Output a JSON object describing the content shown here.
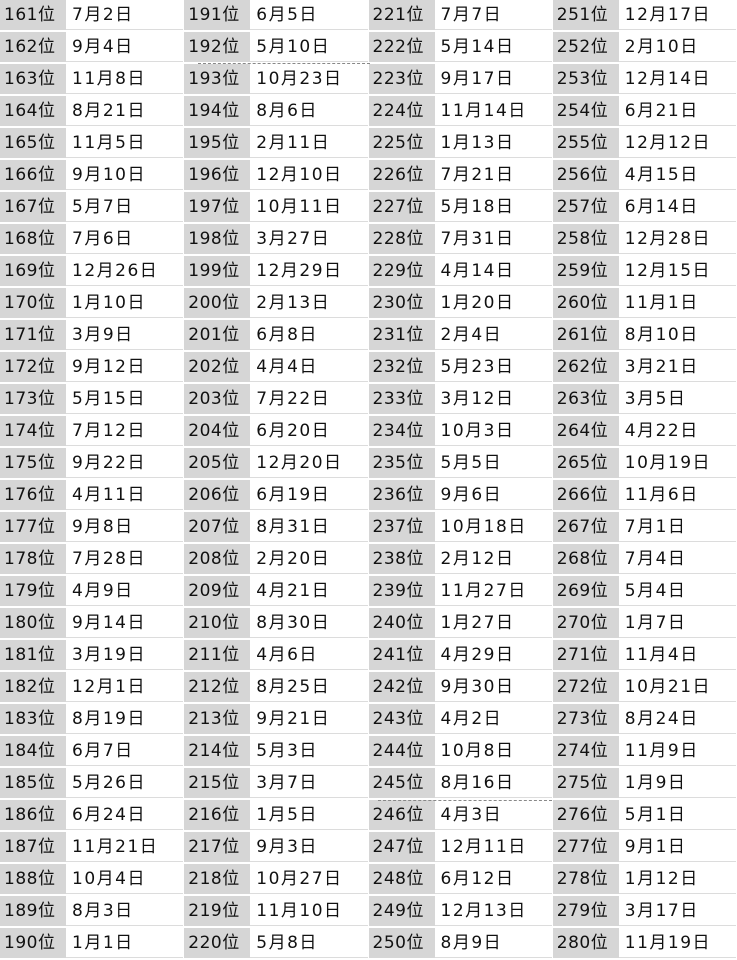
{
  "columns": [
    {
      "rows": [
        {
          "rank": "161位",
          "date": "7月2日"
        },
        {
          "rank": "162位",
          "date": "9月4日"
        },
        {
          "rank": "163位",
          "date": "11月8日"
        },
        {
          "rank": "164位",
          "date": "8月21日"
        },
        {
          "rank": "165位",
          "date": "11月5日"
        },
        {
          "rank": "166位",
          "date": "9月10日"
        },
        {
          "rank": "167位",
          "date": "5月7日"
        },
        {
          "rank": "168位",
          "date": "7月6日"
        },
        {
          "rank": "169位",
          "date": "12月26日"
        },
        {
          "rank": "170位",
          "date": "1月10日"
        },
        {
          "rank": "171位",
          "date": "3月9日"
        },
        {
          "rank": "172位",
          "date": "9月12日"
        },
        {
          "rank": "173位",
          "date": "5月15日"
        },
        {
          "rank": "174位",
          "date": "7月12日"
        },
        {
          "rank": "175位",
          "date": "9月22日"
        },
        {
          "rank": "176位",
          "date": "4月11日"
        },
        {
          "rank": "177位",
          "date": "9月8日"
        },
        {
          "rank": "178位",
          "date": "7月28日"
        },
        {
          "rank": "179位",
          "date": "4月9日"
        },
        {
          "rank": "180位",
          "date": "9月14日"
        },
        {
          "rank": "181位",
          "date": "3月19日"
        },
        {
          "rank": "182位",
          "date": "12月1日"
        },
        {
          "rank": "183位",
          "date": "8月19日"
        },
        {
          "rank": "184位",
          "date": "6月7日"
        },
        {
          "rank": "185位",
          "date": "5月26日"
        },
        {
          "rank": "186位",
          "date": "6月24日"
        },
        {
          "rank": "187位",
          "date": "11月21日"
        },
        {
          "rank": "188位",
          "date": "10月4日"
        },
        {
          "rank": "189位",
          "date": "8月3日"
        },
        {
          "rank": "190位",
          "date": "1月1日"
        }
      ]
    },
    {
      "rows": [
        {
          "rank": "191位",
          "date": "6月5日"
        },
        {
          "rank": "192位",
          "date": "5月10日"
        },
        {
          "rank": "193位",
          "date": "10月23日"
        },
        {
          "rank": "194位",
          "date": "8月6日"
        },
        {
          "rank": "195位",
          "date": "2月11日"
        },
        {
          "rank": "196位",
          "date": "12月10日"
        },
        {
          "rank": "197位",
          "date": "10月11日"
        },
        {
          "rank": "198位",
          "date": "3月27日"
        },
        {
          "rank": "199位",
          "date": "12月29日"
        },
        {
          "rank": "200位",
          "date": "2月13日"
        },
        {
          "rank": "201位",
          "date": "6月8日"
        },
        {
          "rank": "202位",
          "date": "4月4日"
        },
        {
          "rank": "203位",
          "date": "7月22日"
        },
        {
          "rank": "204位",
          "date": "6月20日"
        },
        {
          "rank": "205位",
          "date": "12月20日"
        },
        {
          "rank": "206位",
          "date": "6月19日"
        },
        {
          "rank": "207位",
          "date": "8月31日"
        },
        {
          "rank": "208位",
          "date": "2月20日"
        },
        {
          "rank": "209位",
          "date": "4月21日"
        },
        {
          "rank": "210位",
          "date": "8月30日"
        },
        {
          "rank": "211位",
          "date": "4月6日"
        },
        {
          "rank": "212位",
          "date": "8月25日"
        },
        {
          "rank": "213位",
          "date": "9月21日"
        },
        {
          "rank": "214位",
          "date": "5月3日"
        },
        {
          "rank": "215位",
          "date": "3月7日"
        },
        {
          "rank": "216位",
          "date": "1月5日"
        },
        {
          "rank": "217位",
          "date": "9月3日"
        },
        {
          "rank": "218位",
          "date": "10月27日"
        },
        {
          "rank": "219位",
          "date": "11月10日"
        },
        {
          "rank": "220位",
          "date": "5月8日"
        }
      ]
    },
    {
      "rows": [
        {
          "rank": "221位",
          "date": "7月7日"
        },
        {
          "rank": "222位",
          "date": "5月14日"
        },
        {
          "rank": "223位",
          "date": "9月17日"
        },
        {
          "rank": "224位",
          "date": "11月14日"
        },
        {
          "rank": "225位",
          "date": "1月13日"
        },
        {
          "rank": "226位",
          "date": "7月21日"
        },
        {
          "rank": "227位",
          "date": "5月18日"
        },
        {
          "rank": "228位",
          "date": "7月31日"
        },
        {
          "rank": "229位",
          "date": "4月14日"
        },
        {
          "rank": "230位",
          "date": "1月20日"
        },
        {
          "rank": "231位",
          "date": "2月4日"
        },
        {
          "rank": "232位",
          "date": "5月23日"
        },
        {
          "rank": "233位",
          "date": "3月12日"
        },
        {
          "rank": "234位",
          "date": "10月3日"
        },
        {
          "rank": "235位",
          "date": "5月5日"
        },
        {
          "rank": "236位",
          "date": "9月6日"
        },
        {
          "rank": "237位",
          "date": "10月18日"
        },
        {
          "rank": "238位",
          "date": "2月12日"
        },
        {
          "rank": "239位",
          "date": "11月27日"
        },
        {
          "rank": "240位",
          "date": "1月27日"
        },
        {
          "rank": "241位",
          "date": "4月29日"
        },
        {
          "rank": "242位",
          "date": "9月30日"
        },
        {
          "rank": "243位",
          "date": "4月2日"
        },
        {
          "rank": "244位",
          "date": "10月8日"
        },
        {
          "rank": "245位",
          "date": "8月16日"
        },
        {
          "rank": "246位",
          "date": "4月3日"
        },
        {
          "rank": "247位",
          "date": "12月11日"
        },
        {
          "rank": "248位",
          "date": "6月12日"
        },
        {
          "rank": "249位",
          "date": "12月13日"
        },
        {
          "rank": "250位",
          "date": "8月9日"
        }
      ]
    },
    {
      "rows": [
        {
          "rank": "251位",
          "date": "12月17日"
        },
        {
          "rank": "252位",
          "date": "2月10日"
        },
        {
          "rank": "253位",
          "date": "12月14日"
        },
        {
          "rank": "254位",
          "date": "6月21日"
        },
        {
          "rank": "255位",
          "date": "12月12日"
        },
        {
          "rank": "256位",
          "date": "4月15日"
        },
        {
          "rank": "257位",
          "date": "6月14日"
        },
        {
          "rank": "258位",
          "date": "12月28日"
        },
        {
          "rank": "259位",
          "date": "12月15日"
        },
        {
          "rank": "260位",
          "date": "11月1日"
        },
        {
          "rank": "261位",
          "date": "8月10日"
        },
        {
          "rank": "262位",
          "date": "3月21日"
        },
        {
          "rank": "263位",
          "date": "3月5日"
        },
        {
          "rank": "264位",
          "date": "4月22日"
        },
        {
          "rank": "265位",
          "date": "10月19日"
        },
        {
          "rank": "266位",
          "date": "11月6日"
        },
        {
          "rank": "267位",
          "date": "7月1日"
        },
        {
          "rank": "268位",
          "date": "7月4日"
        },
        {
          "rank": "269位",
          "date": "5月4日"
        },
        {
          "rank": "270位",
          "date": "1月7日"
        },
        {
          "rank": "271位",
          "date": "11月4日"
        },
        {
          "rank": "272位",
          "date": "10月21日"
        },
        {
          "rank": "273位",
          "date": "8月24日"
        },
        {
          "rank": "274位",
          "date": "11月9日"
        },
        {
          "rank": "275位",
          "date": "1月9日"
        },
        {
          "rank": "276位",
          "date": "5月1日"
        },
        {
          "rank": "277位",
          "date": "9月1日"
        },
        {
          "rank": "278位",
          "date": "1月12日"
        },
        {
          "rank": "279位",
          "date": "3月17日"
        },
        {
          "rank": "280位",
          "date": "11月19日"
        }
      ]
    }
  ],
  "colors": {
    "rank_background": "#d6d6d6",
    "date_background": "#ffffff",
    "text": "#111111"
  }
}
